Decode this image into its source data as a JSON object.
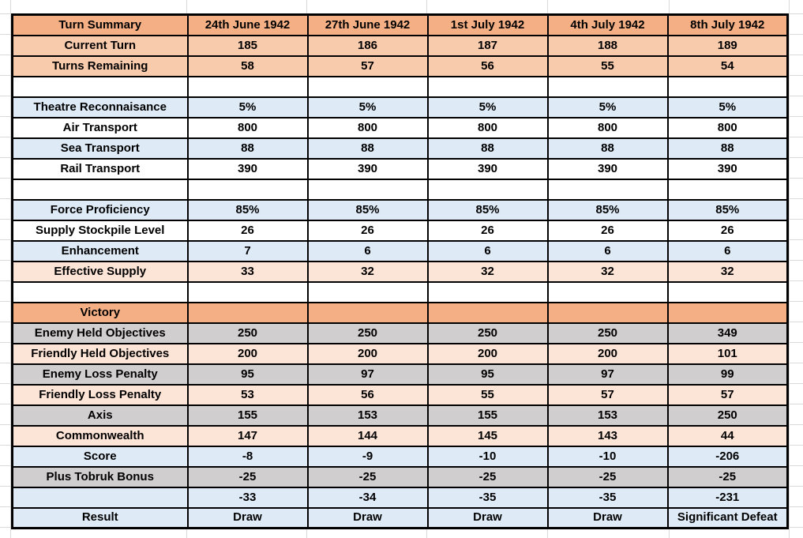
{
  "colors": {
    "orange": "#F4B084",
    "peach": "#F9CBAD",
    "pale_peach": "#FCE4D6",
    "blue": "#DEEBF7",
    "gray": "#D0CECE",
    "white": "#FFFFFF",
    "border": "#000000",
    "gridline": "#D9D9D9",
    "text": "#000000"
  },
  "header": {
    "label": "Turn Summary",
    "color": "orange",
    "columns": [
      "24th June 1942",
      "27th June 1942",
      "1st July 1942",
      "4th July 1942",
      "8th July 1942"
    ]
  },
  "rows": [
    {
      "label": "Current Turn",
      "values": [
        "185",
        "186",
        "187",
        "188",
        "189"
      ],
      "color": "peach",
      "label_align": "left"
    },
    {
      "label": "Turns Remaining",
      "values": [
        "58",
        "57",
        "56",
        "55",
        "54"
      ],
      "color": "peach",
      "label_align": "left"
    },
    {
      "label": "",
      "values": [
        "",
        "",
        "",
        "",
        ""
      ],
      "color": "white",
      "label_align": "left"
    },
    {
      "label": "Theatre Reconnaisance",
      "values": [
        "5%",
        "5%",
        "5%",
        "5%",
        "5%"
      ],
      "color": "blue",
      "label_align": "left"
    },
    {
      "label": "Air Transport",
      "values": [
        "800",
        "800",
        "800",
        "800",
        "800"
      ],
      "color": "white",
      "label_align": "left"
    },
    {
      "label": "Sea Transport",
      "values": [
        "88",
        "88",
        "88",
        "88",
        "88"
      ],
      "color": "blue",
      "label_align": "left"
    },
    {
      "label": "Rail Transport",
      "values": [
        "390",
        "390",
        "390",
        "390",
        "390"
      ],
      "color": "white",
      "label_align": "left"
    },
    {
      "label": "",
      "values": [
        "",
        "",
        "",
        "",
        ""
      ],
      "color": "white",
      "label_align": "left"
    },
    {
      "label": "Force Proficiency",
      "values": [
        "85%",
        "85%",
        "85%",
        "85%",
        "85%"
      ],
      "color": "blue",
      "label_align": "left"
    },
    {
      "label": "Supply Stockpile Level",
      "values": [
        "26",
        "26",
        "26",
        "26",
        "26"
      ],
      "color": "white",
      "label_align": "left"
    },
    {
      "label": "Enhancement",
      "values": [
        "7",
        "6",
        "6",
        "6",
        "6"
      ],
      "color": "blue",
      "label_align": "left"
    },
    {
      "label": "Effective Supply",
      "values": [
        "33",
        "32",
        "32",
        "32",
        "32"
      ],
      "color": "pale_peach",
      "label_align": "left"
    },
    {
      "label": "",
      "values": [
        "",
        "",
        "",
        "",
        ""
      ],
      "color": "white",
      "label_align": "left"
    },
    {
      "label": "Victory",
      "values": [
        "",
        "",
        "",
        "",
        ""
      ],
      "color": "orange",
      "label_align": "center"
    },
    {
      "label": "Enemy Held Objectives",
      "values": [
        "250",
        "250",
        "250",
        "250",
        "349"
      ],
      "color": "gray",
      "label_align": "center"
    },
    {
      "label": "Friendly Held Objectives",
      "values": [
        "200",
        "200",
        "200",
        "200",
        "101"
      ],
      "color": "pale_peach",
      "label_align": "center"
    },
    {
      "label": "Enemy Loss Penalty",
      "values": [
        "95",
        "97",
        "95",
        "97",
        "99"
      ],
      "color": "gray",
      "label_align": "center"
    },
    {
      "label": "Friendly Loss Penalty",
      "values": [
        "53",
        "56",
        "55",
        "57",
        "57"
      ],
      "color": "pale_peach",
      "label_align": "center"
    },
    {
      "label": "Axis",
      "values": [
        "155",
        "153",
        "155",
        "153",
        "250"
      ],
      "color": "gray",
      "label_align": "center"
    },
    {
      "label": "Commonwealth",
      "values": [
        "147",
        "144",
        "145",
        "143",
        "44"
      ],
      "color": "pale_peach",
      "label_align": "center"
    },
    {
      "label": "Score",
      "values": [
        "-8",
        "-9",
        "-10",
        "-10",
        "-206"
      ],
      "color": "blue",
      "label_align": "center"
    },
    {
      "label": "Plus Tobruk Bonus",
      "values": [
        "-25",
        "-25",
        "-25",
        "-25",
        "-25"
      ],
      "color": "gray",
      "label_align": "center"
    },
    {
      "label": "",
      "values": [
        "-33",
        "-34",
        "-35",
        "-35",
        "-231"
      ],
      "color": "blue",
      "label_align": "center"
    },
    {
      "label": "Result",
      "values": [
        "Draw",
        "Draw",
        "Draw",
        "Draw",
        "Significant Defeat"
      ],
      "color": "blue",
      "label_align": "center"
    }
  ]
}
